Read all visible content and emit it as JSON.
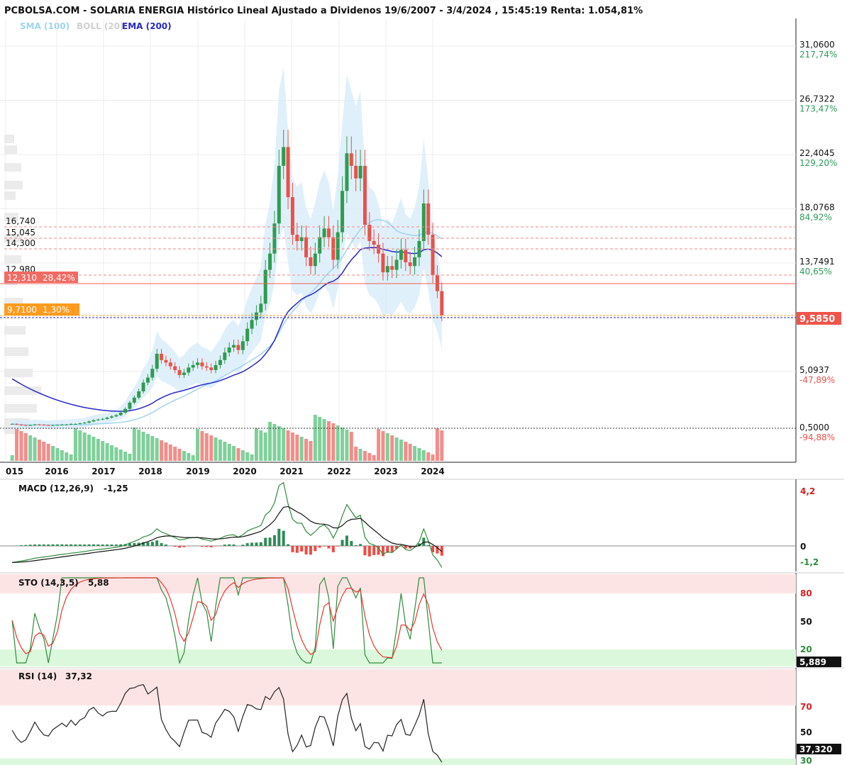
{
  "title": "PCBOLSA.COM - SOLARIA ENERGIA Histórico Lineal Ajustado a Dividenos 19/6/2007 - 3/4/2024 , 15:45:19 Renta: 1.054,81%",
  "legend": {
    "sma": "SMA (100)",
    "boll": "BOLL (20)",
    "ema": "EMA (200)",
    "colors": {
      "sma": "#9fd4f1",
      "boll": "#cfcfcf",
      "ema": "#2727c8"
    }
  },
  "price_axis": [
    {
      "price": "31,0600",
      "pct": "217,74%",
      "sign": "pos"
    },
    {
      "price": "26,7322",
      "pct": "173,47%",
      "sign": "pos"
    },
    {
      "price": "22,4045",
      "pct": "129,20%",
      "sign": "pos"
    },
    {
      "price": "18,0768",
      "pct": "84,92%",
      "sign": "pos"
    },
    {
      "price": "13,7491",
      "pct": "40,65%",
      "sign": "pos"
    },
    {
      "price": "5,0937",
      "pct": "-47,89%",
      "sign": "neg"
    },
    {
      "price": "0,5000",
      "pct": "-94,88%",
      "sign": "neg"
    }
  ],
  "current_price_tag": "9,5850",
  "levels": [
    {
      "value": "16,740"
    },
    {
      "value": "15,045"
    },
    {
      "value": "14,300"
    },
    {
      "value": "12,980"
    }
  ],
  "tags": {
    "red": {
      "value": "12,310",
      "pct": "28,42%"
    },
    "orange": {
      "value": "9,7100",
      "pct": "1,30%"
    }
  },
  "x_axis": [
    "015",
    "2016",
    "2017",
    "2018",
    "2019",
    "2020",
    "2021",
    "2022",
    "2023",
    "2024"
  ],
  "macd": {
    "label": "MACD (12,26,9)",
    "value": "-1,25",
    "axis_top": "4,2",
    "axis_zero": "0",
    "axis_bottom": "-1,2"
  },
  "sto": {
    "label": "STO (14,3,5)",
    "value": "5,88",
    "axis": [
      "80",
      "50",
      "20"
    ],
    "tag": "5,889"
  },
  "rsi": {
    "label": "RSI (14)",
    "value": "37,32",
    "axis": [
      "70",
      "50",
      "30"
    ],
    "tag": "37,320"
  },
  "chart_data": {
    "type": "candlestick",
    "title": "SOLARIA ENERGIA Histórico Lineal Ajustado a Dividenos 19/6/2007 - 3/4/2024",
    "ylim": [
      0.5,
      31.06
    ],
    "x_ticks": [
      "015",
      "2016",
      "2017",
      "2018",
      "2019",
      "2020",
      "2021",
      "2022",
      "2023",
      "2024"
    ],
    "closes": [
      0.9,
      0.85,
      0.8,
      0.78,
      0.8,
      0.85,
      0.83,
      0.8,
      0.78,
      0.8,
      0.82,
      0.85,
      0.85,
      0.9,
      0.9,
      0.95,
      1.0,
      1.1,
      1.2,
      1.25,
      1.3,
      1.4,
      1.5,
      1.6,
      1.8,
      2.1,
      2.6,
      3.0,
      3.5,
      4.2,
      4.6,
      5.3,
      6.5,
      6.0,
      5.8,
      5.5,
      5.2,
      4.8,
      5.0,
      5.4,
      5.6,
      5.8,
      5.5,
      5.4,
      5.2,
      5.6,
      6.0,
      6.6,
      7.0,
      7.2,
      6.8,
      7.5,
      8.5,
      9.2,
      9.8,
      10.5,
      13.2,
      14.5,
      16.9,
      21.5,
      23.0,
      19.0,
      16.0,
      15.5,
      15.8,
      14.2,
      13.5,
      14.5,
      15.8,
      16.5,
      15.8,
      14.0,
      16.2,
      19.5,
      22.5,
      21.5,
      20.5,
      21.5,
      16.8,
      15.5,
      15.2,
      14.5,
      13.0,
      13.5,
      13.2,
      14.0,
      14.8,
      13.8,
      13.5,
      14.2,
      15.5,
      18.5,
      16.0,
      12.8,
      11.5,
      9.585
    ],
    "volume_bars": "relative, shown per candle",
    "series": [
      {
        "name": "SMA (100)"
      },
      {
        "name": "BOLL (20)"
      },
      {
        "name": "EMA (200)"
      }
    ],
    "indicators": {
      "MACD": {
        "params": "12,26,9",
        "last": -1.25
      },
      "STO": {
        "params": "14,3,5",
        "last": 5.88
      },
      "RSI": {
        "params": "14",
        "last": 37.32
      }
    }
  }
}
